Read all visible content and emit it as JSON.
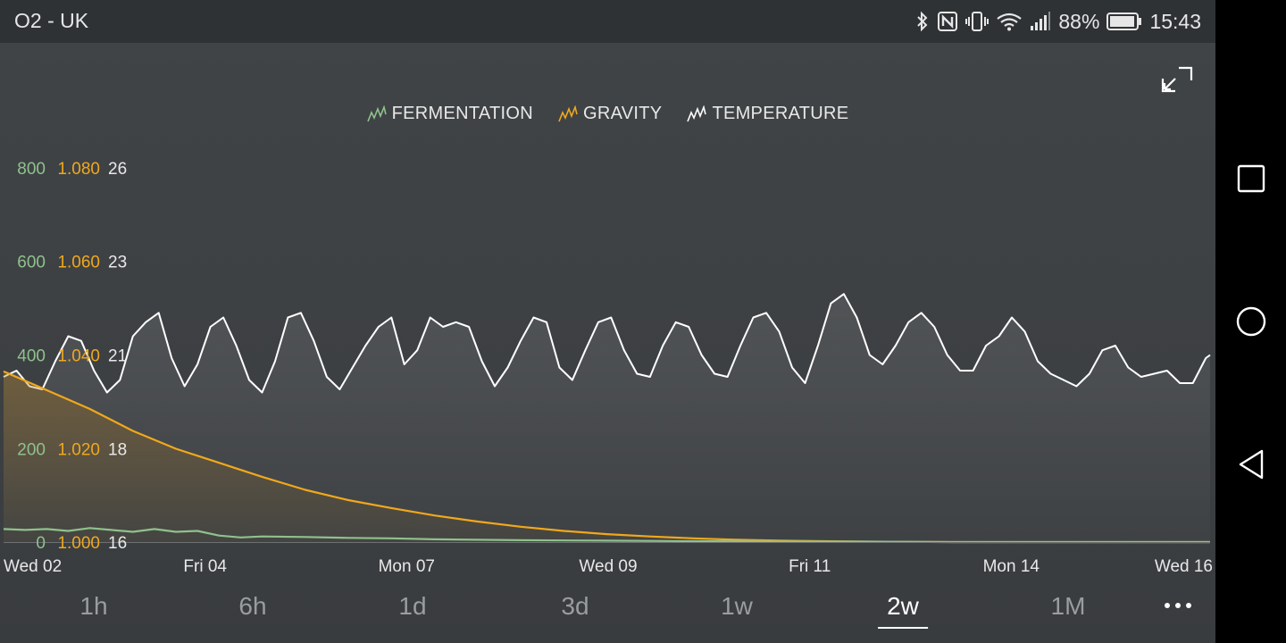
{
  "status_bar": {
    "carrier": "O2 - UK",
    "battery": "88%",
    "time": "15:43",
    "icons": [
      "bluetooth-icon",
      "nfc-icon",
      "vibrate-icon",
      "wifi-icon",
      "signal-icon",
      "battery-icon"
    ]
  },
  "colors": {
    "fermentation": "#8fc18d",
    "gravity": "#f0a81c",
    "temperature": "#ffffff",
    "axis_text": "#e8e8e8"
  },
  "legend": {
    "fermentation": "FERMENTATION",
    "gravity": "GRAVITY",
    "temperature": "TEMPERATURE"
  },
  "chart_data": {
    "type": "line",
    "x_labels": [
      "Wed 02",
      "Fri 04",
      "Mon 07",
      "Wed 09",
      "Fri 11",
      "Mon 14",
      "Wed 16"
    ],
    "xlim": [
      "Wed 02",
      "Wed 16"
    ],
    "axes": {
      "fermentation": {
        "ticks": [
          "0",
          "200",
          "400",
          "600",
          "800"
        ],
        "range": [
          0,
          800
        ]
      },
      "gravity": {
        "ticks": [
          "1.000",
          "1.020",
          "1.040",
          "1.060",
          "1.080"
        ],
        "range": [
          1.0,
          1.08
        ]
      },
      "temperature": {
        "ticks": [
          "16",
          "18",
          "21",
          "23",
          "26"
        ],
        "range": [
          16,
          26
        ]
      }
    },
    "series": [
      {
        "name": "TEMPERATURE",
        "axis": "temperature",
        "x": [
          0.0,
          0.15,
          0.3,
          0.45,
          0.6,
          0.75,
          0.9,
          1.05,
          1.2,
          1.35,
          1.5,
          1.65,
          1.8,
          1.95,
          2.1,
          2.25,
          2.4,
          2.55,
          2.7,
          2.85,
          3.0,
          3.15,
          3.3,
          3.45,
          3.6,
          3.75,
          3.9,
          4.05,
          4.2,
          4.35,
          4.5,
          4.65,
          4.8,
          4.95,
          5.1,
          5.25,
          5.4,
          5.55,
          5.7,
          5.85,
          6.0,
          6.15,
          6.3,
          6.45,
          6.6,
          6.75,
          6.9,
          7.05,
          7.2,
          7.35,
          7.5,
          7.65,
          7.8,
          7.95,
          8.1,
          8.25,
          8.4,
          8.55,
          8.7,
          8.85,
          9.0,
          9.15,
          9.3,
          9.45,
          9.6,
          9.75,
          9.9,
          10.05,
          10.2,
          10.35,
          10.5,
          10.65,
          10.8,
          10.95,
          11.1,
          11.25,
          11.4,
          11.55,
          11.7,
          11.85,
          12.0,
          12.15,
          12.3,
          12.45,
          12.6,
          12.75,
          12.9,
          13.05,
          13.2,
          13.35,
          13.5,
          13.65,
          13.8,
          13.95,
          14.0
        ],
        "values": [
          20.3,
          20.5,
          20.0,
          19.9,
          20.8,
          21.4,
          21.3,
          20.5,
          19.8,
          20.2,
          21.4,
          21.7,
          21.9,
          20.9,
          20.0,
          20.7,
          21.6,
          21.8,
          21.2,
          20.2,
          19.8,
          20.8,
          21.8,
          21.9,
          21.3,
          20.3,
          19.9,
          20.6,
          21.2,
          21.6,
          21.8,
          20.7,
          21.1,
          21.8,
          21.6,
          21.7,
          21.6,
          20.8,
          20.0,
          20.6,
          21.3,
          21.8,
          21.7,
          20.6,
          20.2,
          21.1,
          21.7,
          21.8,
          21.1,
          20.4,
          20.3,
          21.2,
          21.7,
          21.6,
          21.0,
          20.4,
          20.3,
          21.2,
          21.8,
          21.9,
          21.5,
          20.6,
          20.1,
          21.2,
          22.1,
          22.3,
          21.8,
          21.0,
          20.7,
          21.2,
          21.7,
          21.9,
          21.6,
          21.0,
          20.5,
          20.5,
          21.2,
          21.4,
          21.8,
          21.5,
          20.8,
          20.4,
          20.2,
          20.0,
          20.4,
          21.1,
          21.2,
          20.6,
          20.3,
          20.4,
          20.5,
          20.1,
          20.1,
          20.9,
          21.0
        ]
      },
      {
        "name": "GRAVITY",
        "axis": "gravity",
        "x": [
          0.0,
          0.5,
          1.0,
          1.5,
          2.0,
          2.5,
          3.0,
          3.5,
          4.0,
          4.5,
          5.0,
          5.5,
          6.0,
          6.5,
          7.0,
          7.5,
          8.0,
          8.5,
          9.0,
          9.5,
          10.0,
          11.0,
          12.0,
          13.0,
          14.0
        ],
        "values": [
          1.0365,
          1.0325,
          1.0285,
          1.0238,
          1.02,
          1.017,
          1.014,
          1.0112,
          1.009,
          1.0073,
          1.0057,
          1.0044,
          1.0033,
          1.0024,
          1.0017,
          1.0012,
          1.0008,
          1.0005,
          1.0003,
          1.0002,
          1.0001,
          1.0,
          1.0,
          1.0,
          1.0
        ]
      },
      {
        "name": "FERMENTATION",
        "axis": "fermentation",
        "x": [
          0.0,
          0.25,
          0.5,
          0.75,
          1.0,
          1.25,
          1.5,
          1.75,
          2.0,
          2.25,
          2.5,
          2.75,
          3.0,
          3.5,
          4.0,
          4.5,
          5.0,
          6.0,
          7.0,
          8.0,
          9.0,
          10.0,
          11.0,
          12.0,
          13.0,
          14.0
        ],
        "values": [
          28,
          26,
          28,
          24,
          30,
          26,
          22,
          28,
          22,
          24,
          14,
          10,
          12,
          11,
          9,
          8,
          6,
          4,
          3,
          2,
          1,
          1,
          0,
          0,
          0,
          0
        ]
      }
    ],
    "grid": false,
    "legend_position": "top-center"
  },
  "range_selector": {
    "options": [
      "1h",
      "6h",
      "1d",
      "3d",
      "1w",
      "2w",
      "1M"
    ],
    "selected": "2w"
  },
  "nav_bar": [
    "recent-apps-icon",
    "home-icon",
    "back-icon"
  ]
}
